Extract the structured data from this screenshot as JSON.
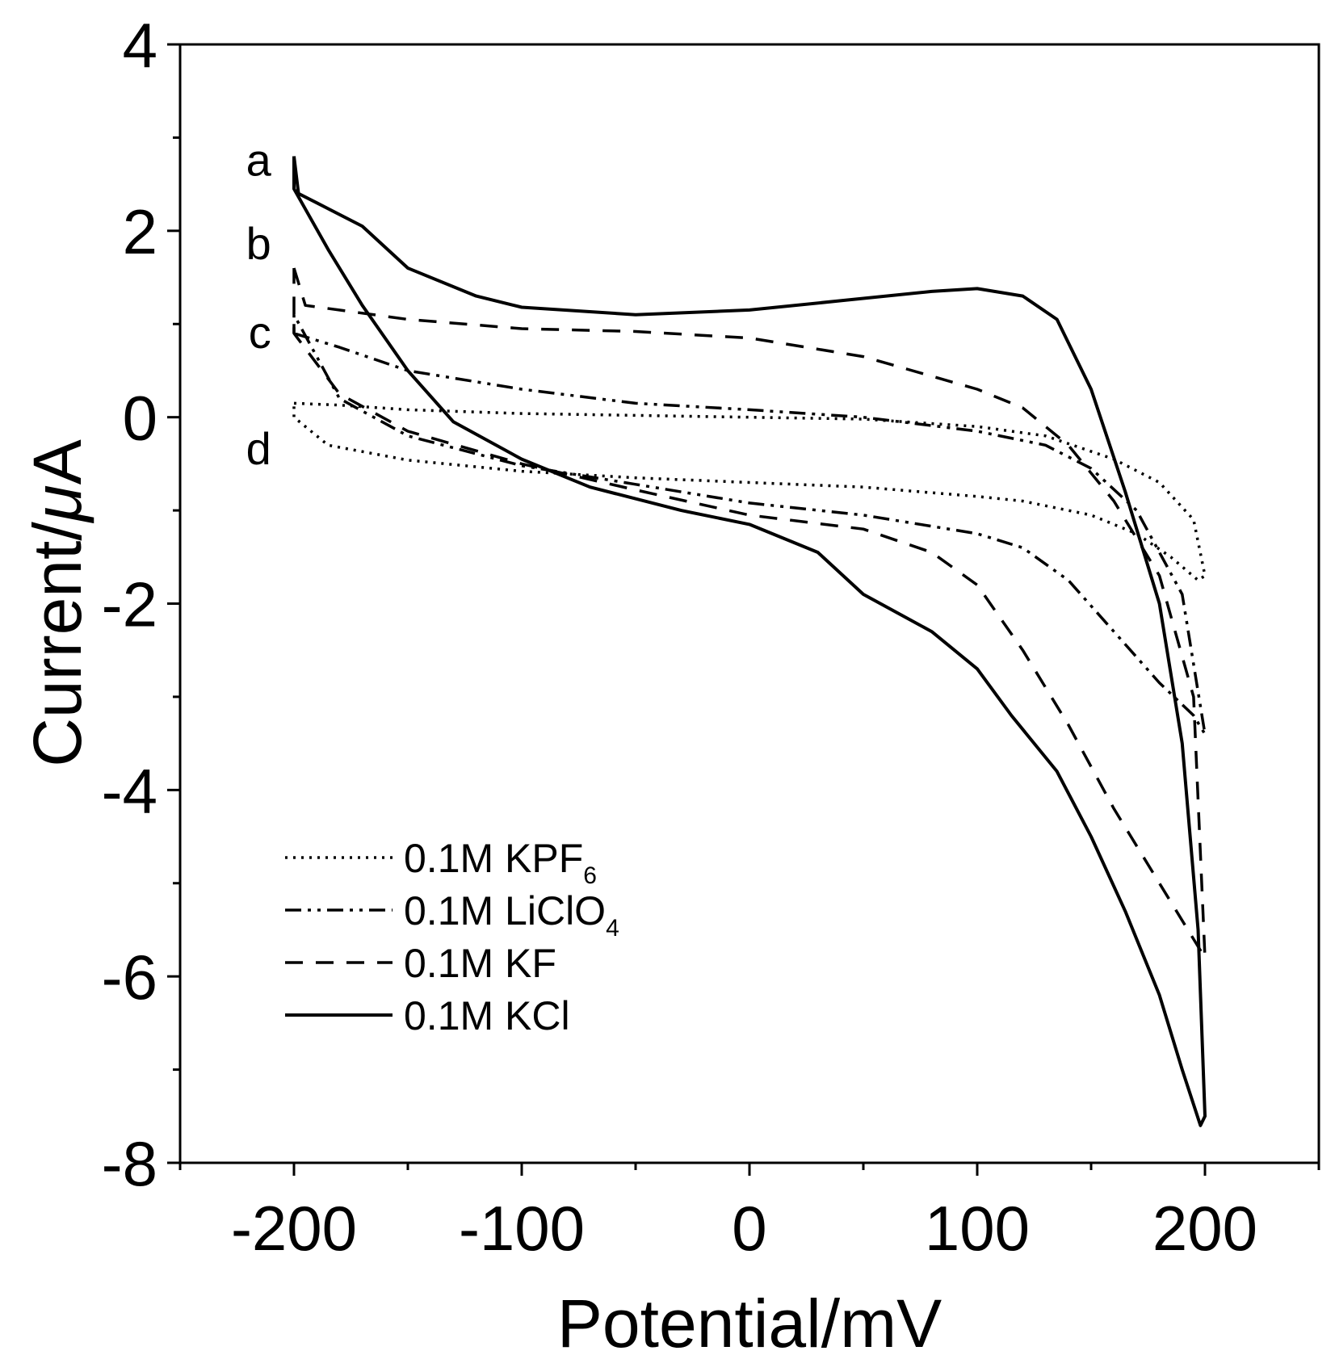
{
  "chart_data": {
    "type": "line",
    "title": "",
    "xlabel": "Potential/mV",
    "ylabel_prefix": "Current/",
    "ylabel_unit_greek": "μ",
    "ylabel_unit": "A",
    "xlim": [
      -250,
      250
    ],
    "ylim": [
      -8,
      4
    ],
    "xticks": [
      -200,
      -100,
      0,
      100,
      200
    ],
    "xtick_labels": [
      "-200",
      "-100",
      "0",
      "100",
      "200"
    ],
    "yticks": [
      -8,
      -6,
      -4,
      -2,
      0,
      2,
      4
    ],
    "ytick_labels": [
      "-8",
      "-6",
      "-4",
      "-2",
      "0",
      "2",
      "4"
    ],
    "grid": false,
    "legend_position": "bottom-left",
    "curve_labels": [
      "a",
      "b",
      "c",
      "d"
    ],
    "series": [
      {
        "name_prefix": "0.1M KPF",
        "name_sub": "6",
        "style": "dotted",
        "label": "d",
        "points": [
          [
            -200,
            0.15
          ],
          [
            -180,
            0.13
          ],
          [
            -150,
            0.08
          ],
          [
            -100,
            0.04
          ],
          [
            -50,
            0.02
          ],
          [
            0,
            0.0
          ],
          [
            50,
            -0.02
          ],
          [
            100,
            -0.1
          ],
          [
            130,
            -0.2
          ],
          [
            160,
            -0.45
          ],
          [
            180,
            -0.7
          ],
          [
            195,
            -1.1
          ],
          [
            200,
            -1.7
          ],
          [
            197,
            -1.75
          ],
          [
            185,
            -1.5
          ],
          [
            170,
            -1.25
          ],
          [
            150,
            -1.05
          ],
          [
            120,
            -0.9
          ],
          [
            100,
            -0.85
          ],
          [
            50,
            -0.75
          ],
          [
            0,
            -0.7
          ],
          [
            -50,
            -0.65
          ],
          [
            -100,
            -0.58
          ],
          [
            -150,
            -0.46
          ],
          [
            -185,
            -0.3
          ],
          [
            -200,
            0.0
          ]
        ]
      },
      {
        "name_prefix": "0.1M LiClO",
        "name_sub": "4",
        "style": "dashdotdot",
        "label": "c",
        "points": [
          [
            -200,
            0.9
          ],
          [
            -180,
            0.75
          ],
          [
            -150,
            0.5
          ],
          [
            -100,
            0.3
          ],
          [
            -50,
            0.15
          ],
          [
            0,
            0.08
          ],
          [
            50,
            0.0
          ],
          [
            100,
            -0.15
          ],
          [
            130,
            -0.3
          ],
          [
            150,
            -0.55
          ],
          [
            170,
            -1.0
          ],
          [
            190,
            -1.9
          ],
          [
            200,
            -3.4
          ],
          [
            195,
            -3.2
          ],
          [
            180,
            -2.85
          ],
          [
            160,
            -2.3
          ],
          [
            140,
            -1.75
          ],
          [
            120,
            -1.4
          ],
          [
            100,
            -1.25
          ],
          [
            50,
            -1.05
          ],
          [
            0,
            -0.92
          ],
          [
            -50,
            -0.72
          ],
          [
            -100,
            -0.52
          ],
          [
            -150,
            -0.2
          ],
          [
            -180,
            0.2
          ],
          [
            -200,
            1.1
          ]
        ]
      },
      {
        "name_prefix": "0.1M KF",
        "name_sub": "",
        "style": "dashed",
        "label": "b",
        "points": [
          [
            -200,
            1.6
          ],
          [
            -195,
            1.2
          ],
          [
            -150,
            1.05
          ],
          [
            -100,
            0.95
          ],
          [
            -50,
            0.92
          ],
          [
            0,
            0.85
          ],
          [
            50,
            0.65
          ],
          [
            100,
            0.3
          ],
          [
            120,
            0.1
          ],
          [
            140,
            -0.3
          ],
          [
            160,
            -0.9
          ],
          [
            180,
            -1.7
          ],
          [
            195,
            -3.0
          ],
          [
            200,
            -5.8
          ],
          [
            195,
            -5.6
          ],
          [
            180,
            -5.0
          ],
          [
            160,
            -4.2
          ],
          [
            140,
            -3.3
          ],
          [
            120,
            -2.5
          ],
          [
            100,
            -1.8
          ],
          [
            80,
            -1.45
          ],
          [
            50,
            -1.2
          ],
          [
            0,
            -1.05
          ],
          [
            -50,
            -0.78
          ],
          [
            -100,
            -0.5
          ],
          [
            -150,
            -0.15
          ],
          [
            -180,
            0.25
          ],
          [
            -200,
            0.9
          ]
        ]
      },
      {
        "name_prefix": "0.1M KCl",
        "name_sub": "",
        "style": "solid",
        "label": "a",
        "points": [
          [
            -200,
            2.8
          ],
          [
            -198,
            2.4
          ],
          [
            -190,
            2.3
          ],
          [
            -170,
            2.05
          ],
          [
            -150,
            1.6
          ],
          [
            -120,
            1.3
          ],
          [
            -100,
            1.18
          ],
          [
            -50,
            1.1
          ],
          [
            0,
            1.15
          ],
          [
            40,
            1.25
          ],
          [
            80,
            1.35
          ],
          [
            100,
            1.38
          ],
          [
            120,
            1.3
          ],
          [
            135,
            1.05
          ],
          [
            150,
            0.3
          ],
          [
            165,
            -0.8
          ],
          [
            180,
            -2.0
          ],
          [
            190,
            -3.5
          ],
          [
            197,
            -5.5
          ],
          [
            200,
            -7.5
          ],
          [
            198,
            -7.6
          ],
          [
            190,
            -7.0
          ],
          [
            180,
            -6.2
          ],
          [
            165,
            -5.3
          ],
          [
            150,
            -4.5
          ],
          [
            135,
            -3.8
          ],
          [
            115,
            -3.2
          ],
          [
            100,
            -2.7
          ],
          [
            80,
            -2.3
          ],
          [
            50,
            -1.9
          ],
          [
            30,
            -1.45
          ],
          [
            0,
            -1.15
          ],
          [
            -30,
            -1.0
          ],
          [
            -70,
            -0.75
          ],
          [
            -100,
            -0.45
          ],
          [
            -130,
            -0.05
          ],
          [
            -150,
            0.5
          ],
          [
            -170,
            1.2
          ],
          [
            -185,
            1.8
          ],
          [
            -200,
            2.45
          ]
        ]
      }
    ]
  }
}
